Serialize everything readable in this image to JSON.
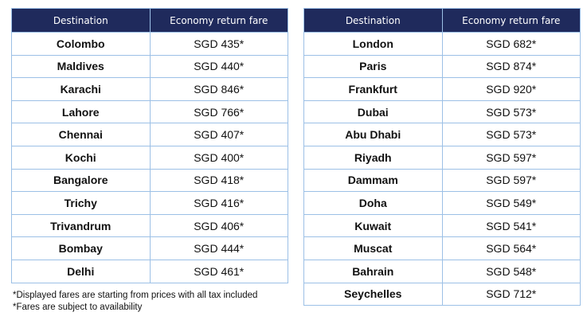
{
  "headers": [
    "Destination",
    "Economy return fare"
  ],
  "left_table": [
    [
      "Colombo",
      "SGD 435*"
    ],
    [
      "Maldives",
      "SGD 440*"
    ],
    [
      "Karachi",
      "SGD 846*"
    ],
    [
      "Lahore",
      "SGD 766*"
    ],
    [
      "Chennai",
      "SGD 407*"
    ],
    [
      "Kochi",
      "SGD 400*"
    ],
    [
      "Bangalore",
      "SGD 418*"
    ],
    [
      "Trichy",
      "SGD 416*"
    ],
    [
      "Trivandrum",
      "SGD 406*"
    ],
    [
      "Bombay",
      "SGD 444*"
    ],
    [
      "Delhi",
      "SGD 461*"
    ]
  ],
  "right_table": [
    [
      "London",
      "SGD 682*"
    ],
    [
      "Paris",
      "SGD 874*"
    ],
    [
      "Frankfurt",
      "SGD 920*"
    ],
    [
      "Dubai",
      "SGD 573*"
    ],
    [
      "Abu Dhabi",
      "SGD 573*"
    ],
    [
      "Riyadh",
      "SGD 597*"
    ],
    [
      "Dammam",
      "SGD 597*"
    ],
    [
      "Doha",
      "SGD 549*"
    ],
    [
      "Kuwait",
      "SGD 541*"
    ],
    [
      "Muscat",
      "SGD 564*"
    ],
    [
      "Bahrain",
      "SGD 548*"
    ],
    [
      "Seychelles",
      "SGD 712*"
    ]
  ],
  "notes": [
    "*Displayed fares are starting from prices with all tax included",
    "*Fares are subject to availability"
  ],
  "colors": {
    "header_bg": "#1f2a5c",
    "border": "#9cc0e6"
  }
}
